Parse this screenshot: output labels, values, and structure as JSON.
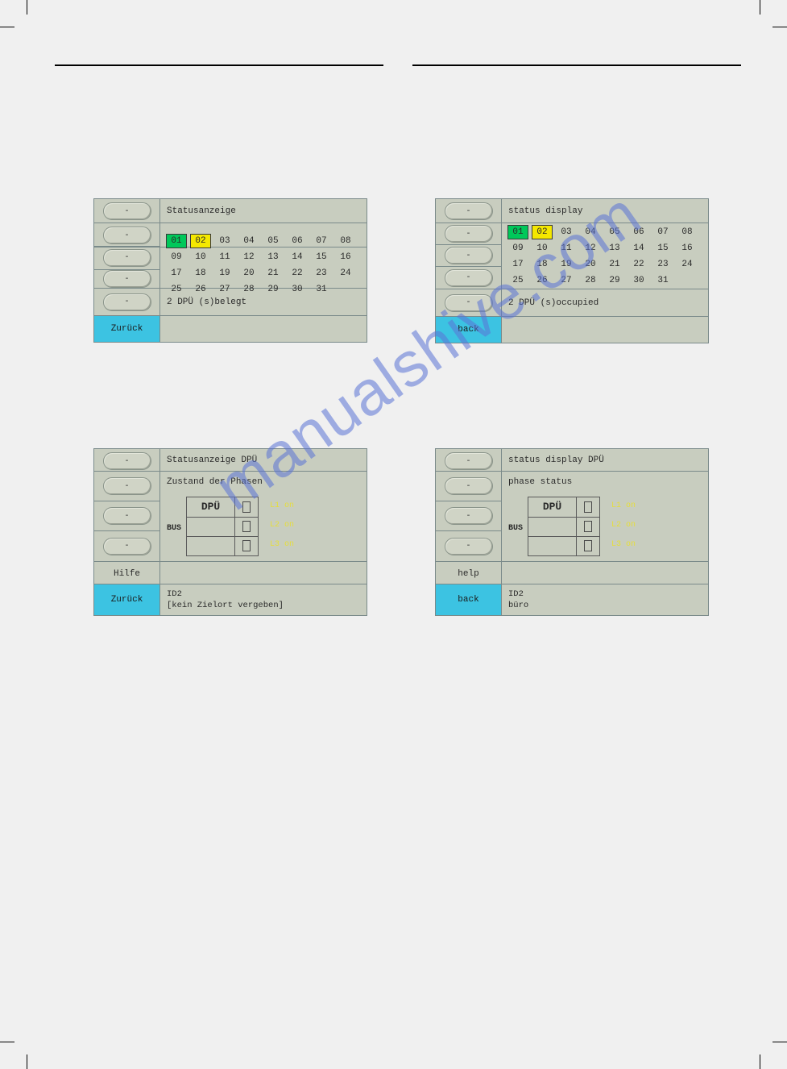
{
  "watermark": "manualshive.com",
  "panels": {
    "status_left": {
      "title": "Statusanzeige",
      "back": "Zurück",
      "occupied_text": "2 DPÜ (s)belegt",
      "numbers": [
        "01",
        "02",
        "03",
        "04",
        "05",
        "06",
        "07",
        "08",
        "09",
        "10",
        "11",
        "12",
        "13",
        "14",
        "15",
        "16",
        "17",
        "18",
        "19",
        "20",
        "21",
        "22",
        "23",
        "24",
        "25",
        "26",
        "27",
        "28",
        "29",
        "30",
        "31"
      ],
      "hl_green": "01",
      "hl_yellow": "02",
      "colors": {
        "bg": "#c8cdbf",
        "border": "#7a8a8a",
        "back_bg": "#3cc3e2",
        "green": "#00c85a",
        "yellow": "#f4e800"
      }
    },
    "status_right": {
      "title": "status display",
      "back": "back",
      "occupied_text": "2 DPÜ (s)occupied",
      "numbers": [
        "01",
        "02",
        "03",
        "04",
        "05",
        "06",
        "07",
        "08",
        "09",
        "10",
        "11",
        "12",
        "13",
        "14",
        "15",
        "16",
        "17",
        "18",
        "19",
        "20",
        "21",
        "22",
        "23",
        "24",
        "25",
        "26",
        "27",
        "28",
        "29",
        "30",
        "31"
      ],
      "hl_green": "01",
      "hl_yellow": "02"
    },
    "phase_left": {
      "header": "Statusanzeige DPÜ",
      "sub": "Zustand der Phasen",
      "bus": "BUS",
      "dpu": "DPÜ",
      "ph1": "L1 on",
      "ph2": "L2 on",
      "ph3": "L3 on",
      "help": "Hilfe",
      "back": "Zurück",
      "id_line1": "ID2",
      "id_line2": "[kein Zielort vergeben]"
    },
    "phase_right": {
      "header": "status display DPÜ",
      "sub": "phase status",
      "bus": "BUS",
      "dpu": "DPÜ",
      "ph1": "L1 on",
      "ph2": "L2 on",
      "ph3": "L3 on",
      "help": "help",
      "back": "back",
      "id_line1": "ID2",
      "id_line2": "büro"
    }
  }
}
